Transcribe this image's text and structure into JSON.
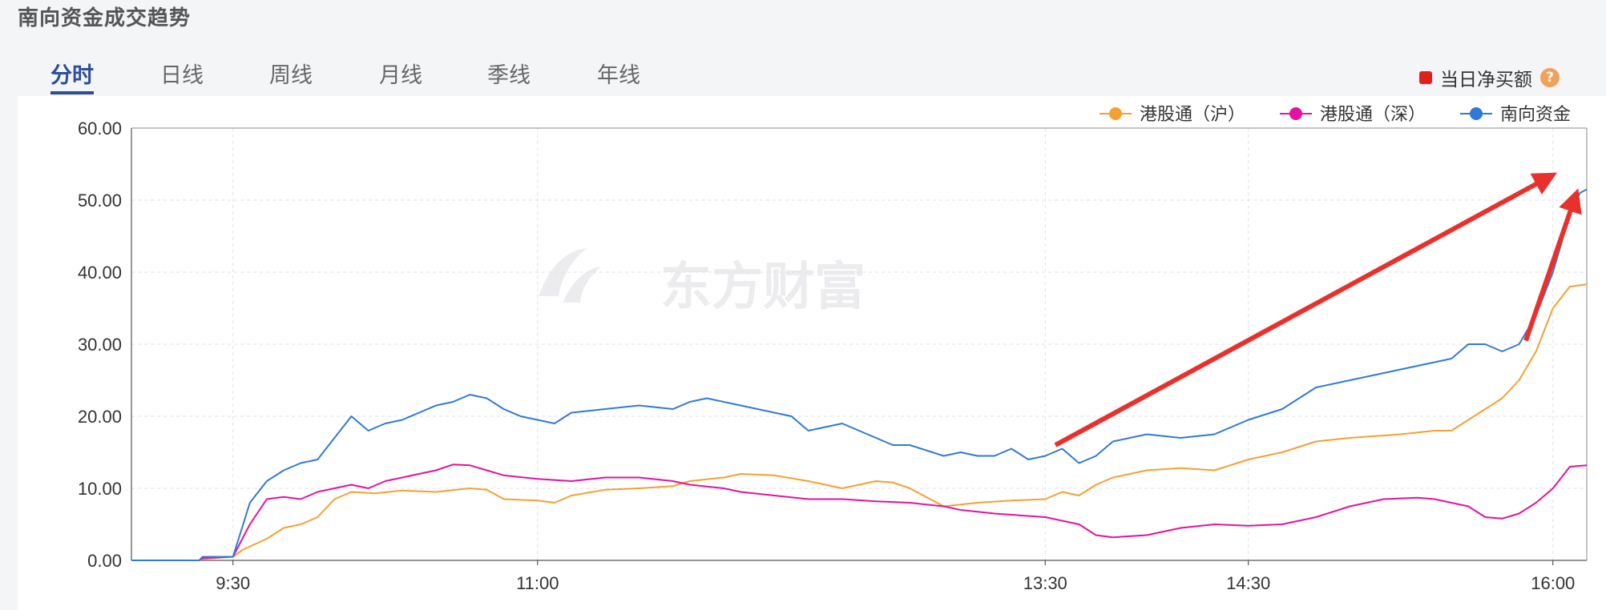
{
  "page_title": "南向资金成交趋势",
  "tabs": [
    {
      "label": "分时",
      "active": true
    },
    {
      "label": "日线",
      "active": false
    },
    {
      "label": "周线",
      "active": false
    },
    {
      "label": "月线",
      "active": false
    },
    {
      "label": "季线",
      "active": false
    },
    {
      "label": "年线",
      "active": false
    }
  ],
  "net_buy_toggle": {
    "label": "当日净买额",
    "help_glyph": "?"
  },
  "watermark": "东方财富",
  "colors": {
    "sh": "#f5a031",
    "sz": "#e5129f",
    "total": "#2f7ad8",
    "arrow": "#e8312c",
    "grid": "#dde2e8",
    "axis": "#333333"
  },
  "chart_data": {
    "type": "line",
    "x_range": [
      "9:00",
      "16:10"
    ],
    "ylim": [
      0,
      60
    ],
    "y_ticks": [
      "0.00",
      "10.00",
      "20.00",
      "30.00",
      "40.00",
      "50.00",
      "60.00"
    ],
    "x_ticks": [
      "9:30",
      "11:00",
      "13:30",
      "14:30",
      "16:00"
    ],
    "grid": true,
    "legend_position": "top-right",
    "series": [
      {
        "name": "港股通（沪）",
        "color": "#f5a031",
        "points": [
          [
            "9:00",
            0
          ],
          [
            "9:20",
            0
          ],
          [
            "9:21",
            0.2
          ],
          [
            "9:30",
            0.5
          ],
          [
            "9:33",
            1.5
          ],
          [
            "9:40",
            3
          ],
          [
            "9:45",
            4.5
          ],
          [
            "9:50",
            5
          ],
          [
            "9:55",
            6
          ],
          [
            "10:00",
            8.5
          ],
          [
            "10:05",
            9.5
          ],
          [
            "10:12",
            9.3
          ],
          [
            "10:20",
            9.7
          ],
          [
            "10:30",
            9.5
          ],
          [
            "10:40",
            10
          ],
          [
            "10:45",
            9.8
          ],
          [
            "10:50",
            8.5
          ],
          [
            "11:00",
            8.3
          ],
          [
            "11:05",
            8
          ],
          [
            "11:10",
            9
          ],
          [
            "11:20",
            9.8
          ],
          [
            "11:30",
            10
          ],
          [
            "11:40",
            10.3
          ],
          [
            "11:45",
            11
          ],
          [
            "11:55",
            11.5
          ],
          [
            "12:00",
            12
          ],
          [
            "12:10",
            11.8
          ],
          [
            "12:20",
            11
          ],
          [
            "12:30",
            10
          ],
          [
            "12:40",
            11
          ],
          [
            "12:45",
            10.8
          ],
          [
            "12:50",
            10
          ],
          [
            "13:00",
            7.5
          ],
          [
            "13:10",
            8
          ],
          [
            "13:20",
            8.3
          ],
          [
            "13:30",
            8.5
          ],
          [
            "13:35",
            9.5
          ],
          [
            "13:40",
            9
          ],
          [
            "13:45",
            10.5
          ],
          [
            "13:50",
            11.5
          ],
          [
            "14:00",
            12.5
          ],
          [
            "14:10",
            12.8
          ],
          [
            "14:20",
            12.5
          ],
          [
            "14:30",
            14
          ],
          [
            "14:40",
            15
          ],
          [
            "14:50",
            16.5
          ],
          [
            "15:00",
            17
          ],
          [
            "15:15",
            17.5
          ],
          [
            "15:25",
            18
          ],
          [
            "15:30",
            18
          ],
          [
            "15:40",
            21
          ],
          [
            "15:45",
            22.5
          ],
          [
            "15:50",
            25
          ],
          [
            "15:55",
            29
          ],
          [
            "16:00",
            35
          ],
          [
            "16:05",
            38
          ],
          [
            "16:10",
            38.3
          ]
        ]
      },
      {
        "name": "港股通（深）",
        "color": "#e5129f",
        "points": [
          [
            "9:00",
            0
          ],
          [
            "9:20",
            0
          ],
          [
            "9:21",
            0.3
          ],
          [
            "9:30",
            0.5
          ],
          [
            "9:35",
            5
          ],
          [
            "9:40",
            8.5
          ],
          [
            "9:45",
            8.8
          ],
          [
            "9:50",
            8.5
          ],
          [
            "9:55",
            9.5
          ],
          [
            "10:00",
            10
          ],
          [
            "10:05",
            10.5
          ],
          [
            "10:10",
            10
          ],
          [
            "10:15",
            11
          ],
          [
            "10:20",
            11.5
          ],
          [
            "10:30",
            12.5
          ],
          [
            "10:35",
            13.3
          ],
          [
            "10:40",
            13.2
          ],
          [
            "10:45",
            12.5
          ],
          [
            "10:50",
            11.8
          ],
          [
            "11:00",
            11.3
          ],
          [
            "11:10",
            11
          ],
          [
            "11:20",
            11.5
          ],
          [
            "11:30",
            11.5
          ],
          [
            "11:40",
            11
          ],
          [
            "11:45",
            10.5
          ],
          [
            "11:55",
            10
          ],
          [
            "12:00",
            9.5
          ],
          [
            "12:10",
            9
          ],
          [
            "12:20",
            8.5
          ],
          [
            "12:30",
            8.5
          ],
          [
            "12:40",
            8.2
          ],
          [
            "12:50",
            8
          ],
          [
            "13:00",
            7.5
          ],
          [
            "13:05",
            7
          ],
          [
            "13:15",
            6.5
          ],
          [
            "13:30",
            6
          ],
          [
            "13:35",
            5.5
          ],
          [
            "13:40",
            5
          ],
          [
            "13:45",
            3.5
          ],
          [
            "13:50",
            3.2
          ],
          [
            "14:00",
            3.5
          ],
          [
            "14:10",
            4.5
          ],
          [
            "14:20",
            5
          ],
          [
            "14:30",
            4.8
          ],
          [
            "14:40",
            5
          ],
          [
            "14:50",
            6
          ],
          [
            "15:00",
            7.5
          ],
          [
            "15:10",
            8.5
          ],
          [
            "15:20",
            8.7
          ],
          [
            "15:25",
            8.5
          ],
          [
            "15:30",
            8
          ],
          [
            "15:35",
            7.5
          ],
          [
            "15:40",
            6
          ],
          [
            "15:45",
            5.8
          ],
          [
            "15:50",
            6.5
          ],
          [
            "15:55",
            8
          ],
          [
            "16:00",
            10
          ],
          [
            "16:05",
            13
          ],
          [
            "16:10",
            13.2
          ]
        ]
      },
      {
        "name": "南向资金",
        "color": "#2f7ad8",
        "points": [
          [
            "9:00",
            0
          ],
          [
            "9:20",
            0
          ],
          [
            "9:21",
            0.5
          ],
          [
            "9:30",
            0.5
          ],
          [
            "9:33",
            5
          ],
          [
            "9:35",
            8
          ],
          [
            "9:40",
            11
          ],
          [
            "9:45",
            12.5
          ],
          [
            "9:50",
            13.5
          ],
          [
            "9:55",
            14
          ],
          [
            "10:00",
            17
          ],
          [
            "10:05",
            20
          ],
          [
            "10:10",
            18
          ],
          [
            "10:15",
            19
          ],
          [
            "10:20",
            19.5
          ],
          [
            "10:25",
            20.5
          ],
          [
            "10:30",
            21.5
          ],
          [
            "10:35",
            22
          ],
          [
            "10:40",
            23
          ],
          [
            "10:45",
            22.5
          ],
          [
            "10:50",
            21
          ],
          [
            "10:55",
            20
          ],
          [
            "11:00",
            19.5
          ],
          [
            "11:05",
            19
          ],
          [
            "11:10",
            20.5
          ],
          [
            "11:20",
            21
          ],
          [
            "11:30",
            21.5
          ],
          [
            "11:40",
            21
          ],
          [
            "11:45",
            22
          ],
          [
            "11:50",
            22.5
          ],
          [
            "12:00",
            21.5
          ],
          [
            "12:10",
            20.5
          ],
          [
            "12:15",
            20
          ],
          [
            "12:20",
            18
          ],
          [
            "12:30",
            19
          ],
          [
            "12:35",
            18
          ],
          [
            "12:40",
            17
          ],
          [
            "12:45",
            16
          ],
          [
            "12:50",
            16
          ],
          [
            "13:00",
            14.5
          ],
          [
            "13:05",
            15
          ],
          [
            "13:10",
            14.5
          ],
          [
            "13:15",
            14.5
          ],
          [
            "13:20",
            15.5
          ],
          [
            "13:25",
            14
          ],
          [
            "13:30",
            14.5
          ],
          [
            "13:35",
            15.5
          ],
          [
            "13:40",
            13.5
          ],
          [
            "13:45",
            14.5
          ],
          [
            "13:50",
            16.5
          ],
          [
            "14:00",
            17.5
          ],
          [
            "14:10",
            17
          ],
          [
            "14:20",
            17.5
          ],
          [
            "14:30",
            19.5
          ],
          [
            "14:40",
            21
          ],
          [
            "14:50",
            24
          ],
          [
            "15:00",
            25
          ],
          [
            "15:10",
            26
          ],
          [
            "15:20",
            27
          ],
          [
            "15:30",
            28
          ],
          [
            "15:35",
            30
          ],
          [
            "15:40",
            30
          ],
          [
            "15:45",
            29
          ],
          [
            "15:50",
            30
          ],
          [
            "15:55",
            34
          ],
          [
            "16:00",
            40
          ],
          [
            "16:05",
            48
          ],
          [
            "16:08",
            51
          ],
          [
            "16:10",
            51.5
          ]
        ]
      }
    ]
  }
}
